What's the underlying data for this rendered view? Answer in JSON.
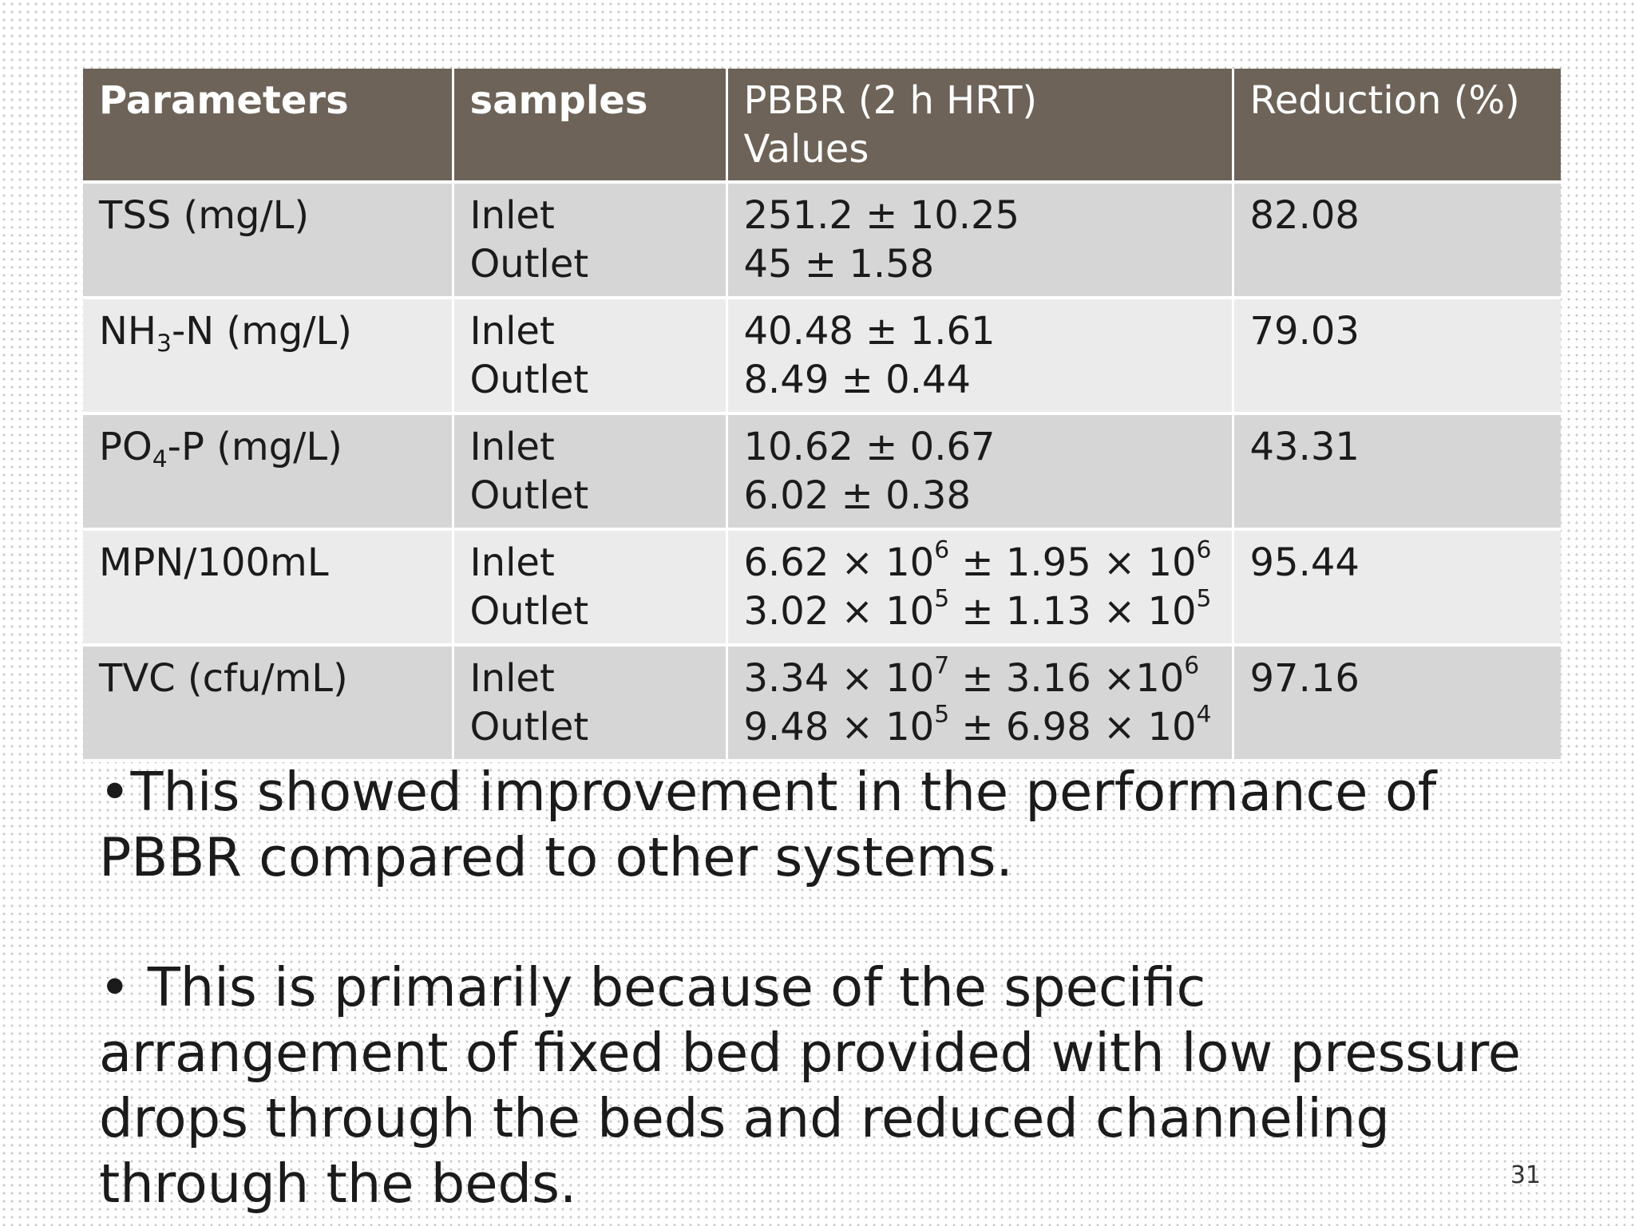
{
  "table": {
    "headers": {
      "parameters": "Parameters",
      "samples": "samples",
      "values_line1": "PBBR (2 h HRT)",
      "values_line2": "Values",
      "reduction": "Reduction (%)"
    },
    "rows": [
      {
        "parameter": {
          "pre": "TSS (mg/L)",
          "sub": "",
          "post": ""
        },
        "inlet_label": "Inlet",
        "outlet_label": "Outlet",
        "inlet": {
          "mant": "251.2",
          "exp": "",
          "sep": " ± ",
          "err_mant": "10.25",
          "err_exp": ""
        },
        "outlet": {
          "mant": "45",
          "exp": "",
          "sep": " ± ",
          "err_mant": "1.58",
          "err_exp": ""
        },
        "reduction": "82.08"
      },
      {
        "parameter": {
          "pre": "NH",
          "sub": "3",
          "post": "-N (mg/L)"
        },
        "inlet_label": "Inlet",
        "outlet_label": "Outlet",
        "inlet": {
          "mant": "40.48",
          "exp": "",
          "sep": " ± ",
          "err_mant": "1.61",
          "err_exp": ""
        },
        "outlet": {
          "mant": "8.49",
          "exp": "",
          "sep": " ± ",
          "err_mant": "0.44",
          "err_exp": ""
        },
        "reduction": "79.03"
      },
      {
        "parameter": {
          "pre": "PO",
          "sub": "4",
          "post": "-P (mg/L)"
        },
        "inlet_label": "Inlet",
        "outlet_label": "Outlet",
        "inlet": {
          "mant": "10.62",
          "exp": "",
          "sep": " ± ",
          "err_mant": "0.67",
          "err_exp": ""
        },
        "outlet": {
          "mant": "6.02",
          "exp": "",
          "sep": " ± ",
          "err_mant": "0.38",
          "err_exp": ""
        },
        "reduction": "43.31"
      },
      {
        "parameter": {
          "pre": "MPN/100mL",
          "sub": "",
          "post": ""
        },
        "inlet_label": "Inlet",
        "outlet_label": "Outlet",
        "inlet": {
          "mant": "6.62 × 10",
          "exp": "6",
          "sep": " ± ",
          "err_mant": "1.95 × 10",
          "err_exp": "6"
        },
        "outlet": {
          "mant": "3.02 × 10",
          "exp": "5",
          "sep": " ± ",
          "err_mant": "1.13 × 10",
          "err_exp": "5"
        },
        "reduction": "95.44"
      },
      {
        "parameter": {
          "pre": "TVC (cfu/mL)",
          "sub": "",
          "post": ""
        },
        "inlet_label": "Inlet",
        "outlet_label": "Outlet",
        "inlet": {
          "mant": "3.34 × 10",
          "exp": "7",
          "sep": " ± ",
          "err_mant": "3.16 ×10",
          "err_exp": "6"
        },
        "outlet": {
          "mant": "9.48 × 10",
          "exp": "5",
          "sep": " ± ",
          "err_mant": "6.98 × 10",
          "err_exp": "4"
        },
        "reduction": "97.16"
      }
    ]
  },
  "bullets": [
    "•This showed improvement in the performance of PBBR compared to other systems.",
    "• This is primarily because of the specific arrangement of fixed bed provided with low pressure drops through the beds and reduced channeling through the beds."
  ],
  "page_number": "31",
  "colors": {
    "header_bg": "#6d6358",
    "row_dark": "#d6d6d6",
    "row_light": "#ebebeb"
  }
}
